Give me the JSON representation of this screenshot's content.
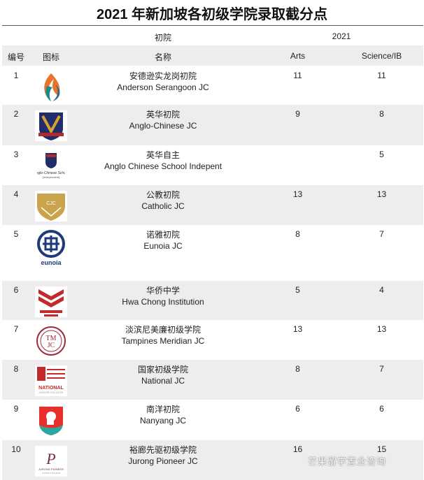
{
  "title": "2021 年新加坡各初级学院录取截分点",
  "header": {
    "group_college": "初院",
    "group_year": "2021",
    "col_num": "编号",
    "col_icon": "图标",
    "col_name": "名称",
    "col_arts": "Arts",
    "col_science": "Science/IB"
  },
  "rows": [
    {
      "num": "1",
      "cn": "安德逊实龙岗初院",
      "en": "Anderson Serangoon JC",
      "arts": "11",
      "science": "11",
      "icon": "flame-logo"
    },
    {
      "num": "2",
      "cn": "英华初院",
      "en": "Anglo-Chinese JC",
      "arts": "9",
      "science": "8",
      "icon": "shield-crest-logo"
    },
    {
      "num": "3",
      "cn": "英华自主",
      "en": "Anglo Chinese School Indepent",
      "arts": "",
      "science": "5",
      "icon": "crest-logo"
    },
    {
      "num": "4",
      "cn": "公教初院",
      "en": "Catholic JC",
      "arts": "13",
      "science": "13",
      "icon": "gold-shield-logo"
    },
    {
      "num": "5",
      "cn": "诺雅初院",
      "en": "Eunoia JC",
      "arts": "8",
      "science": "7",
      "icon": "eunoia-logo"
    },
    {
      "num": "6",
      "cn": "华侨中学",
      "en": "Hwa Chong Institution",
      "arts": "5",
      "science": "4",
      "icon": "red-chevron-logo"
    },
    {
      "num": "7",
      "cn": "淡滨尼美廉初级学院",
      "en": "Tampines Meridian JC",
      "arts": "13",
      "science": "13",
      "icon": "tmjc-logo"
    },
    {
      "num": "8",
      "cn": "国家初级学院",
      "en": "National JC",
      "arts": "8",
      "science": "7",
      "icon": "national-logo"
    },
    {
      "num": "9",
      "cn": "南洋初院",
      "en": "Nanyang JC",
      "arts": "6",
      "science": "6",
      "icon": "lion-shield-logo"
    },
    {
      "num": "10",
      "cn": "裕廊先驱初级学院",
      "en": "Jurong Pioneer JC",
      "arts": "16",
      "science": "15",
      "icon": "jp-logo"
    }
  ],
  "logo_text": {
    "eunoia": "eunoia",
    "tmjc": "TMJC",
    "national": "NATIONAL",
    "jurong": "JURONG PIONEER",
    "catholic": "CJC"
  },
  "watermark": "芒果留学置业咨询"
}
